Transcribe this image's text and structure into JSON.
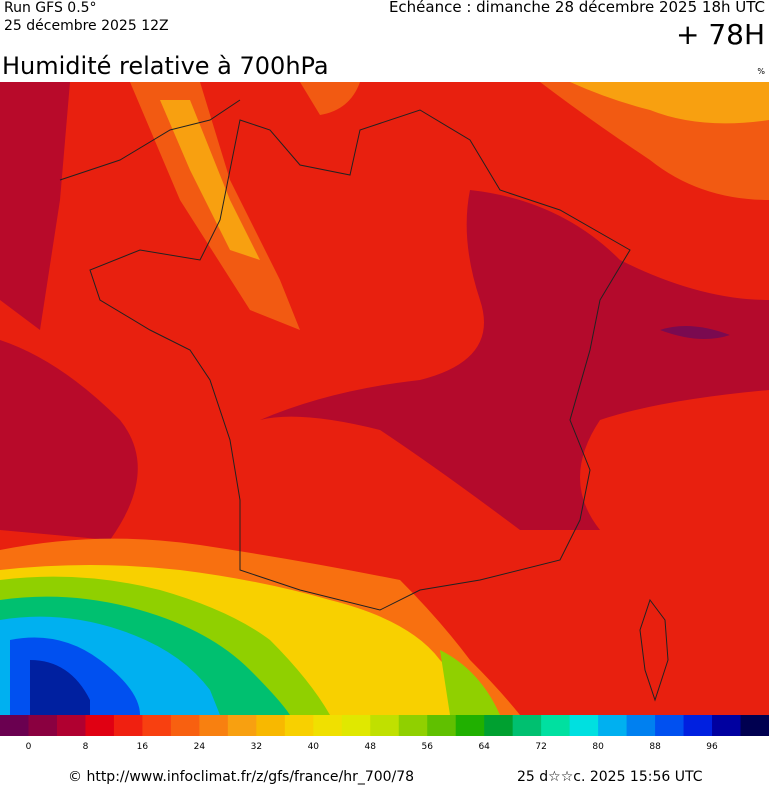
{
  "header": {
    "run": "Run GFS 0.5°",
    "run_date": "25 décembre 2025 12Z",
    "valid_time": "Echéance : dimanche 28 décembre 2025 18h UTC",
    "lead": "+ 78H"
  },
  "map": {
    "title": "Humidité relative à 700hPa",
    "unit": "%"
  },
  "colorbar": {
    "labels": [
      "0",
      "8",
      "16",
      "24",
      "32",
      "40",
      "48",
      "56",
      "64",
      "72",
      "80",
      "88",
      "96"
    ]
  },
  "footer": {
    "source": "© http://www.infoclimat.fr/z/gfs/france/hr_700/78",
    "generated": "25 d☆☆c. 2025 15:56 UTC"
  }
}
